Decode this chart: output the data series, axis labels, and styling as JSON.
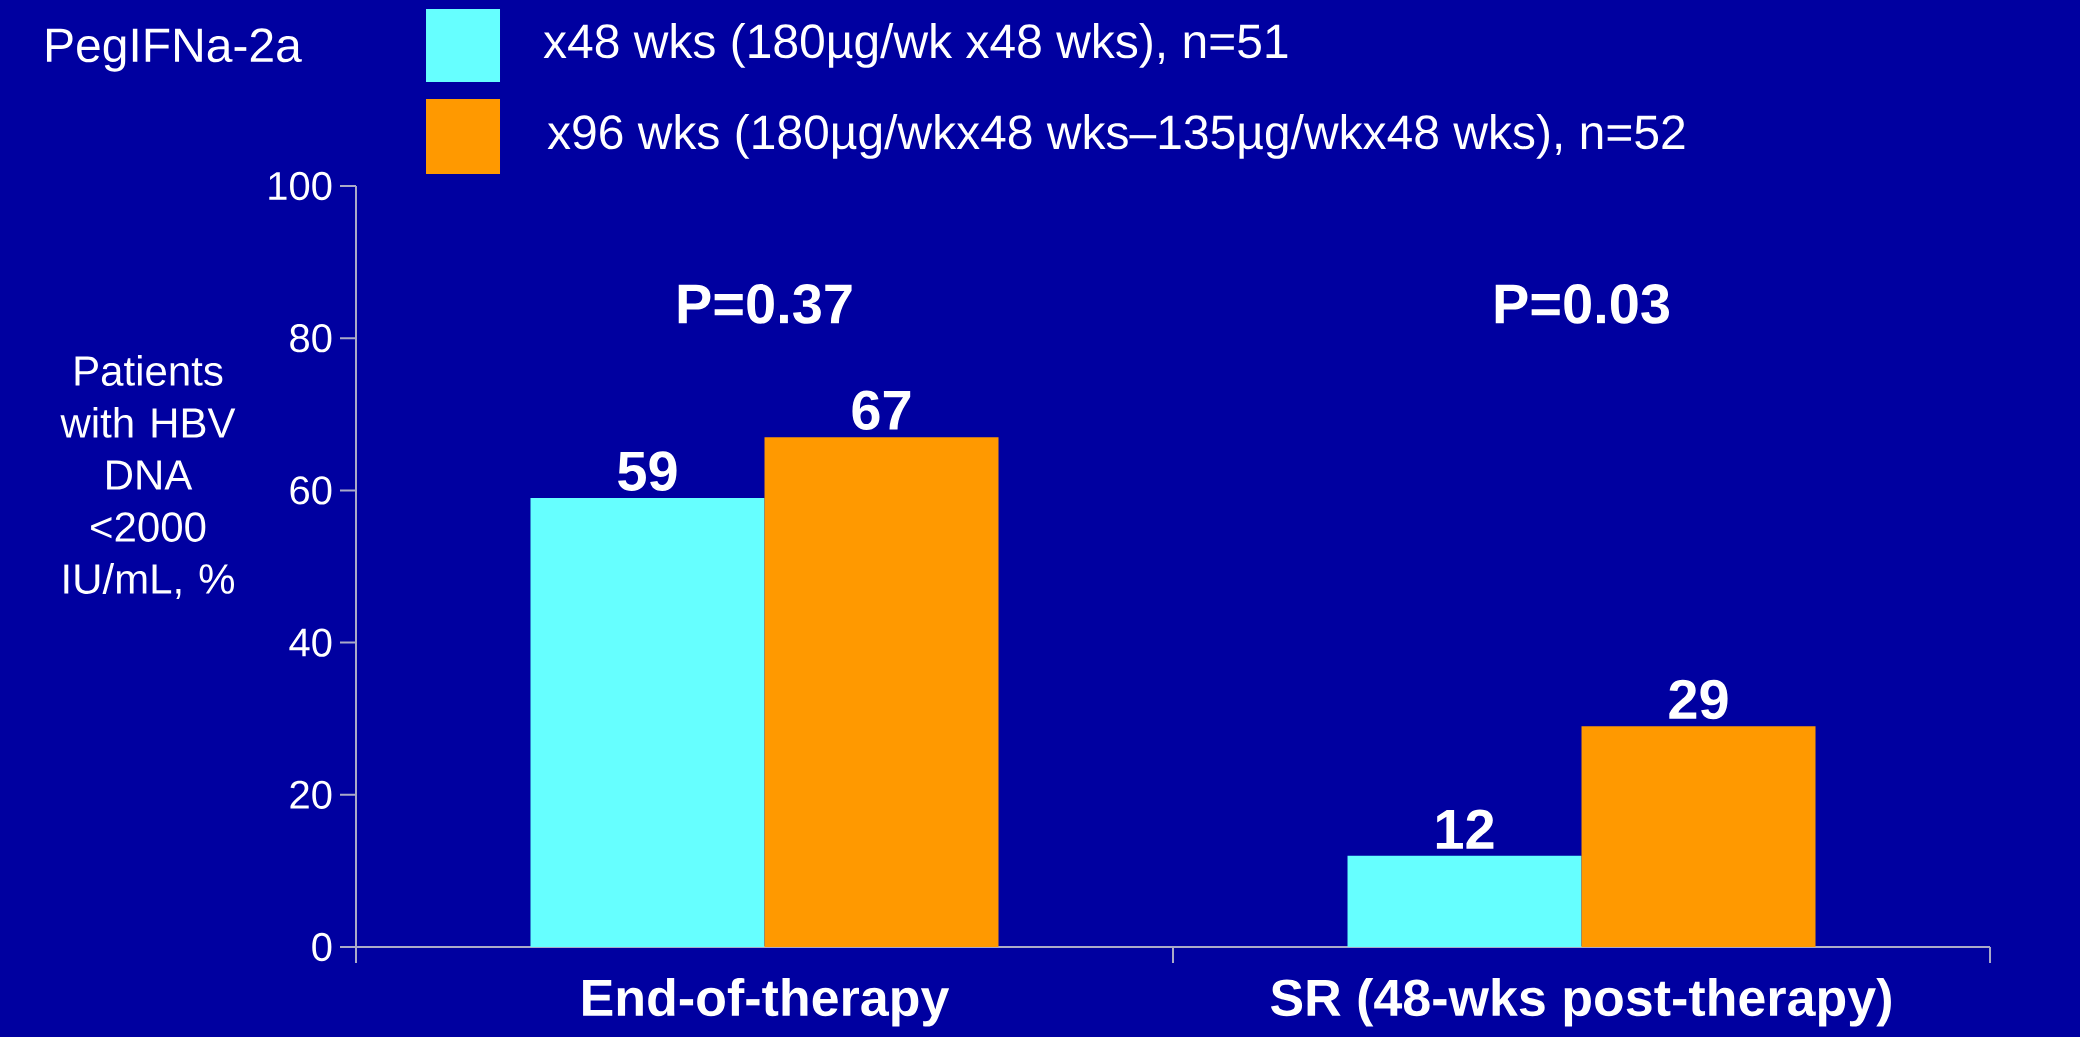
{
  "chart_data": {
    "type": "bar",
    "legend_title": "PegIFNa-2a",
    "ylabel": "Patients with HBV DNA <2000 IU/mL, %",
    "categories": [
      "End-of-therapy",
      "SR (48-wks post-therapy)"
    ],
    "series": [
      {
        "name": "x48 wks (180µg/wk x48 wks), n=51",
        "color": "#66ffff",
        "values": [
          59,
          12
        ]
      },
      {
        "name": "x96 wks (180µg/wkx48 wks–135µg/wkx48 wks), n=52",
        "color": "#ff9900",
        "values": [
          67,
          29
        ]
      }
    ],
    "ylim": [
      0,
      100
    ],
    "yticks": [
      0,
      20,
      40,
      60,
      80,
      100
    ],
    "data_labels": true,
    "legend": "top",
    "grid": false,
    "annotations": [
      "P=0.37",
      "P=0.03"
    ]
  }
}
